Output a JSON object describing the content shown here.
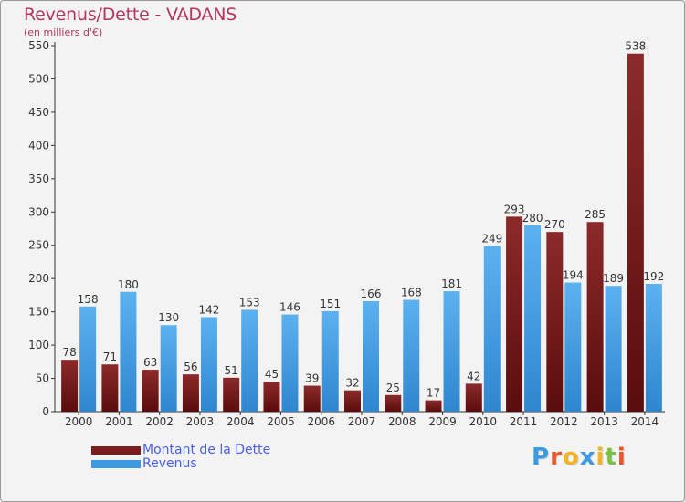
{
  "header": {
    "title": "Revenus/Dette - VADANS",
    "subtitle": "(en milliers d'€)"
  },
  "legend": {
    "items": [
      {
        "label": "Montant de la Dette",
        "color": "#7a1c1c"
      },
      {
        "label": "Revenus",
        "color": "#3e9ae0"
      }
    ]
  },
  "logo": {
    "text": "Proxiti",
    "letter_colors": [
      "#3a9be0",
      "#e8562a",
      "#f0b429",
      "#3a9be0",
      "#f0b429",
      "#7cc242",
      "#e8562a"
    ]
  },
  "colors": {
    "debt_top": "#8c2a2a",
    "debt_bottom": "#5a0c0c",
    "revenue_top": "#5cb1ef",
    "revenue_bottom": "#2f86cf",
    "axis": "#333333",
    "grid": "#dcdcdc"
  },
  "chart_data": {
    "type": "bar",
    "title": "Revenus/Dette - VADANS",
    "subtitle": "(en milliers d'€)",
    "categories": [
      "2000",
      "2001",
      "2002",
      "2003",
      "2004",
      "2005",
      "2006",
      "2007",
      "2008",
      "2009",
      "2010",
      "2011",
      "2012",
      "2013",
      "2014"
    ],
    "series": [
      {
        "name": "Montant de la Dette",
        "values": [
          78,
          71,
          63,
          56,
          51,
          45,
          39,
          32,
          25,
          17,
          42,
          293,
          270,
          285,
          538
        ]
      },
      {
        "name": "Revenus",
        "values": [
          158,
          180,
          130,
          142,
          153,
          146,
          151,
          166,
          168,
          181,
          249,
          280,
          194,
          189,
          192
        ]
      }
    ],
    "ylim": [
      0,
      550
    ],
    "yticks": [
      0,
      50,
      100,
      150,
      200,
      250,
      300,
      350,
      400,
      450,
      500,
      550
    ],
    "grid": false,
    "legend_position": "bottom-left"
  }
}
